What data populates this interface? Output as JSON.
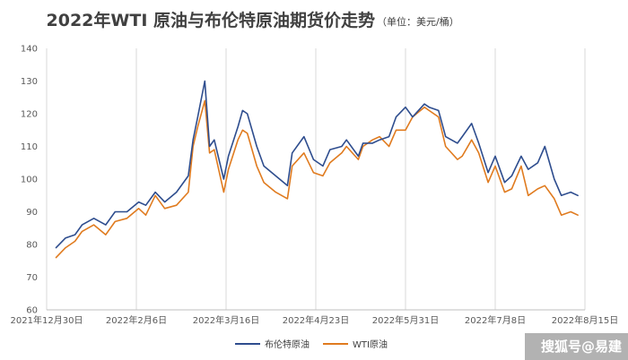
{
  "chart_data": {
    "type": "line",
    "title": "2022年WTI 原油与布伦特原油期货价走势",
    "subtitle": "（单位：美元/桶）",
    "xlabel": "",
    "ylabel": "",
    "ylim": [
      60,
      140
    ],
    "y_ticks": [
      60,
      70,
      80,
      90,
      100,
      110,
      120,
      130,
      140
    ],
    "x_range": [
      "2021-12-30",
      "2022-08-15"
    ],
    "x_ticks": [
      {
        "date": "2021-12-30",
        "label": "2021年12月30日"
      },
      {
        "date": "2022-02-06",
        "label": "2022年2月6日"
      },
      {
        "date": "2022-03-16",
        "label": "2022年3月16日"
      },
      {
        "date": "2022-04-23",
        "label": "2022年4月23日"
      },
      {
        "date": "2022-05-31",
        "label": "2022年5月31日"
      },
      {
        "date": "2022-07-08",
        "label": "2022年7月8日"
      },
      {
        "date": "2022-08-15",
        "label": "2022年8月15日"
      }
    ],
    "grid": "vertical",
    "legend_position": "bottom",
    "series": [
      {
        "name": "布伦特原油",
        "color": "#2E4D8E",
        "points": [
          [
            "2022-01-03",
            79
          ],
          [
            "2022-01-07",
            82
          ],
          [
            "2022-01-11",
            83
          ],
          [
            "2022-01-14",
            86
          ],
          [
            "2022-01-19",
            88
          ],
          [
            "2022-01-24",
            86
          ],
          [
            "2022-01-28",
            90
          ],
          [
            "2022-02-02",
            90
          ],
          [
            "2022-02-07",
            93
          ],
          [
            "2022-02-10",
            92
          ],
          [
            "2022-02-14",
            96
          ],
          [
            "2022-02-18",
            93
          ],
          [
            "2022-02-23",
            96
          ],
          [
            "2022-02-28",
            101
          ],
          [
            "2022-03-02",
            112
          ],
          [
            "2022-03-04",
            119
          ],
          [
            "2022-03-07",
            130
          ],
          [
            "2022-03-09",
            110
          ],
          [
            "2022-03-11",
            112
          ],
          [
            "2022-03-15",
            100
          ],
          [
            "2022-03-17",
            107
          ],
          [
            "2022-03-21",
            116
          ],
          [
            "2022-03-23",
            121
          ],
          [
            "2022-03-25",
            120
          ],
          [
            "2022-03-29",
            110
          ],
          [
            "2022-04-01",
            104
          ],
          [
            "2022-04-06",
            101
          ],
          [
            "2022-04-11",
            98
          ],
          [
            "2022-04-13",
            108
          ],
          [
            "2022-04-18",
            113
          ],
          [
            "2022-04-22",
            106
          ],
          [
            "2022-04-26",
            104
          ],
          [
            "2022-04-29",
            109
          ],
          [
            "2022-05-04",
            110
          ],
          [
            "2022-05-06",
            112
          ],
          [
            "2022-05-11",
            107
          ],
          [
            "2022-05-13",
            111
          ],
          [
            "2022-05-17",
            111
          ],
          [
            "2022-05-20",
            112
          ],
          [
            "2022-05-24",
            113
          ],
          [
            "2022-05-27",
            119
          ],
          [
            "2022-05-31",
            122
          ],
          [
            "2022-06-03",
            119
          ],
          [
            "2022-06-08",
            123
          ],
          [
            "2022-06-10",
            122
          ],
          [
            "2022-06-14",
            121
          ],
          [
            "2022-06-17",
            113
          ],
          [
            "2022-06-22",
            111
          ],
          [
            "2022-06-24",
            113
          ],
          [
            "2022-06-28",
            117
          ],
          [
            "2022-07-01",
            111
          ],
          [
            "2022-07-05",
            102
          ],
          [
            "2022-07-08",
            107
          ],
          [
            "2022-07-12",
            99
          ],
          [
            "2022-07-15",
            101
          ],
          [
            "2022-07-19",
            107
          ],
          [
            "2022-07-22",
            103
          ],
          [
            "2022-07-26",
            105
          ],
          [
            "2022-07-29",
            110
          ],
          [
            "2022-08-02",
            100
          ],
          [
            "2022-08-05",
            95
          ],
          [
            "2022-08-09",
            96
          ],
          [
            "2022-08-12",
            95
          ]
        ]
      },
      {
        "name": "WTI原油",
        "color": "#E07B1F",
        "points": [
          [
            "2022-01-03",
            76
          ],
          [
            "2022-01-07",
            79
          ],
          [
            "2022-01-11",
            81
          ],
          [
            "2022-01-14",
            84
          ],
          [
            "2022-01-19",
            86
          ],
          [
            "2022-01-24",
            83
          ],
          [
            "2022-01-28",
            87
          ],
          [
            "2022-02-02",
            88
          ],
          [
            "2022-02-07",
            91
          ],
          [
            "2022-02-10",
            89
          ],
          [
            "2022-02-14",
            95
          ],
          [
            "2022-02-18",
            91
          ],
          [
            "2022-02-23",
            92
          ],
          [
            "2022-02-28",
            96
          ],
          [
            "2022-03-02",
            110
          ],
          [
            "2022-03-04",
            116
          ],
          [
            "2022-03-07",
            124
          ],
          [
            "2022-03-09",
            108
          ],
          [
            "2022-03-11",
            109
          ],
          [
            "2022-03-15",
            96
          ],
          [
            "2022-03-17",
            103
          ],
          [
            "2022-03-21",
            112
          ],
          [
            "2022-03-23",
            115
          ],
          [
            "2022-03-25",
            114
          ],
          [
            "2022-03-29",
            104
          ],
          [
            "2022-04-01",
            99
          ],
          [
            "2022-04-06",
            96
          ],
          [
            "2022-04-11",
            94
          ],
          [
            "2022-04-13",
            104
          ],
          [
            "2022-04-18",
            108
          ],
          [
            "2022-04-22",
            102
          ],
          [
            "2022-04-26",
            101
          ],
          [
            "2022-04-29",
            105
          ],
          [
            "2022-05-04",
            108
          ],
          [
            "2022-05-06",
            110
          ],
          [
            "2022-05-11",
            106
          ],
          [
            "2022-05-13",
            110
          ],
          [
            "2022-05-17",
            112
          ],
          [
            "2022-05-20",
            113
          ],
          [
            "2022-05-24",
            110
          ],
          [
            "2022-05-27",
            115
          ],
          [
            "2022-05-31",
            115
          ],
          [
            "2022-06-03",
            119
          ],
          [
            "2022-06-08",
            122
          ],
          [
            "2022-06-10",
            121
          ],
          [
            "2022-06-14",
            119
          ],
          [
            "2022-06-17",
            110
          ],
          [
            "2022-06-22",
            106
          ],
          [
            "2022-06-24",
            107
          ],
          [
            "2022-06-28",
            112
          ],
          [
            "2022-07-01",
            108
          ],
          [
            "2022-07-05",
            99
          ],
          [
            "2022-07-08",
            104
          ],
          [
            "2022-07-12",
            96
          ],
          [
            "2022-07-15",
            97
          ],
          [
            "2022-07-19",
            104
          ],
          [
            "2022-07-22",
            95
          ],
          [
            "2022-07-26",
            97
          ],
          [
            "2022-07-29",
            98
          ],
          [
            "2022-08-02",
            94
          ],
          [
            "2022-08-05",
            89
          ],
          [
            "2022-08-09",
            90
          ],
          [
            "2022-08-12",
            89
          ]
        ]
      }
    ]
  },
  "watermark": "搜狐号@易建"
}
